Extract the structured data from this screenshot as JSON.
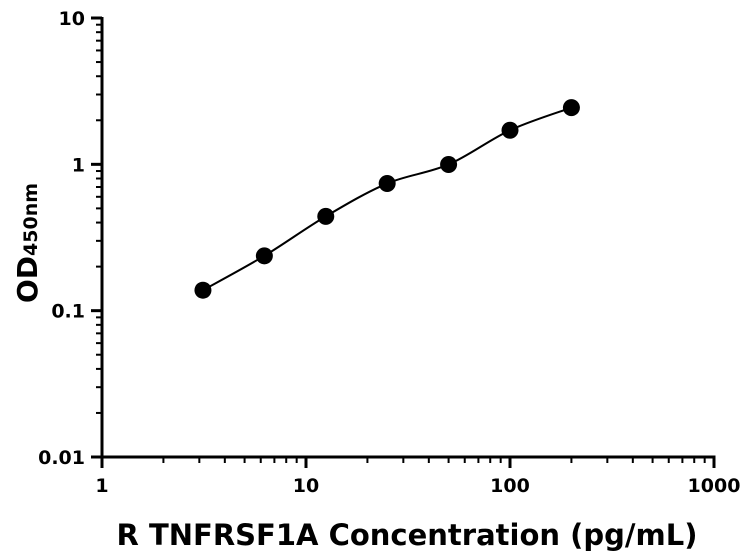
{
  "chart_data": {
    "type": "scatter",
    "xscale": "log",
    "yscale": "log",
    "xlim": [
      1,
      1000
    ],
    "ylim": [
      0.01,
      10
    ],
    "xticks": [
      1,
      10,
      100,
      1000
    ],
    "xtick_labels": [
      "1",
      "10",
      "100",
      "1000"
    ],
    "yticks": [
      0.01,
      0.1,
      1,
      10
    ],
    "ytick_labels": [
      "0.01",
      "0.1",
      "1",
      "10"
    ],
    "xlabel": "R TNFRSF1A Concentration (pg/mL)",
    "ylabel": {
      "main": "OD",
      "subscript": "450nm"
    },
    "grid": false,
    "series": [
      {
        "x": [
          3.125,
          6.25,
          12.5,
          25,
          50,
          100,
          200
        ],
        "y": [
          0.138,
          0.237,
          0.441,
          0.74,
          0.998,
          1.71,
          2.44
        ],
        "marker": "filled-circle",
        "fit_line": true
      }
    ],
    "colors": {
      "marker": "#000000",
      "line": "#000000",
      "axes": "#000000"
    }
  }
}
